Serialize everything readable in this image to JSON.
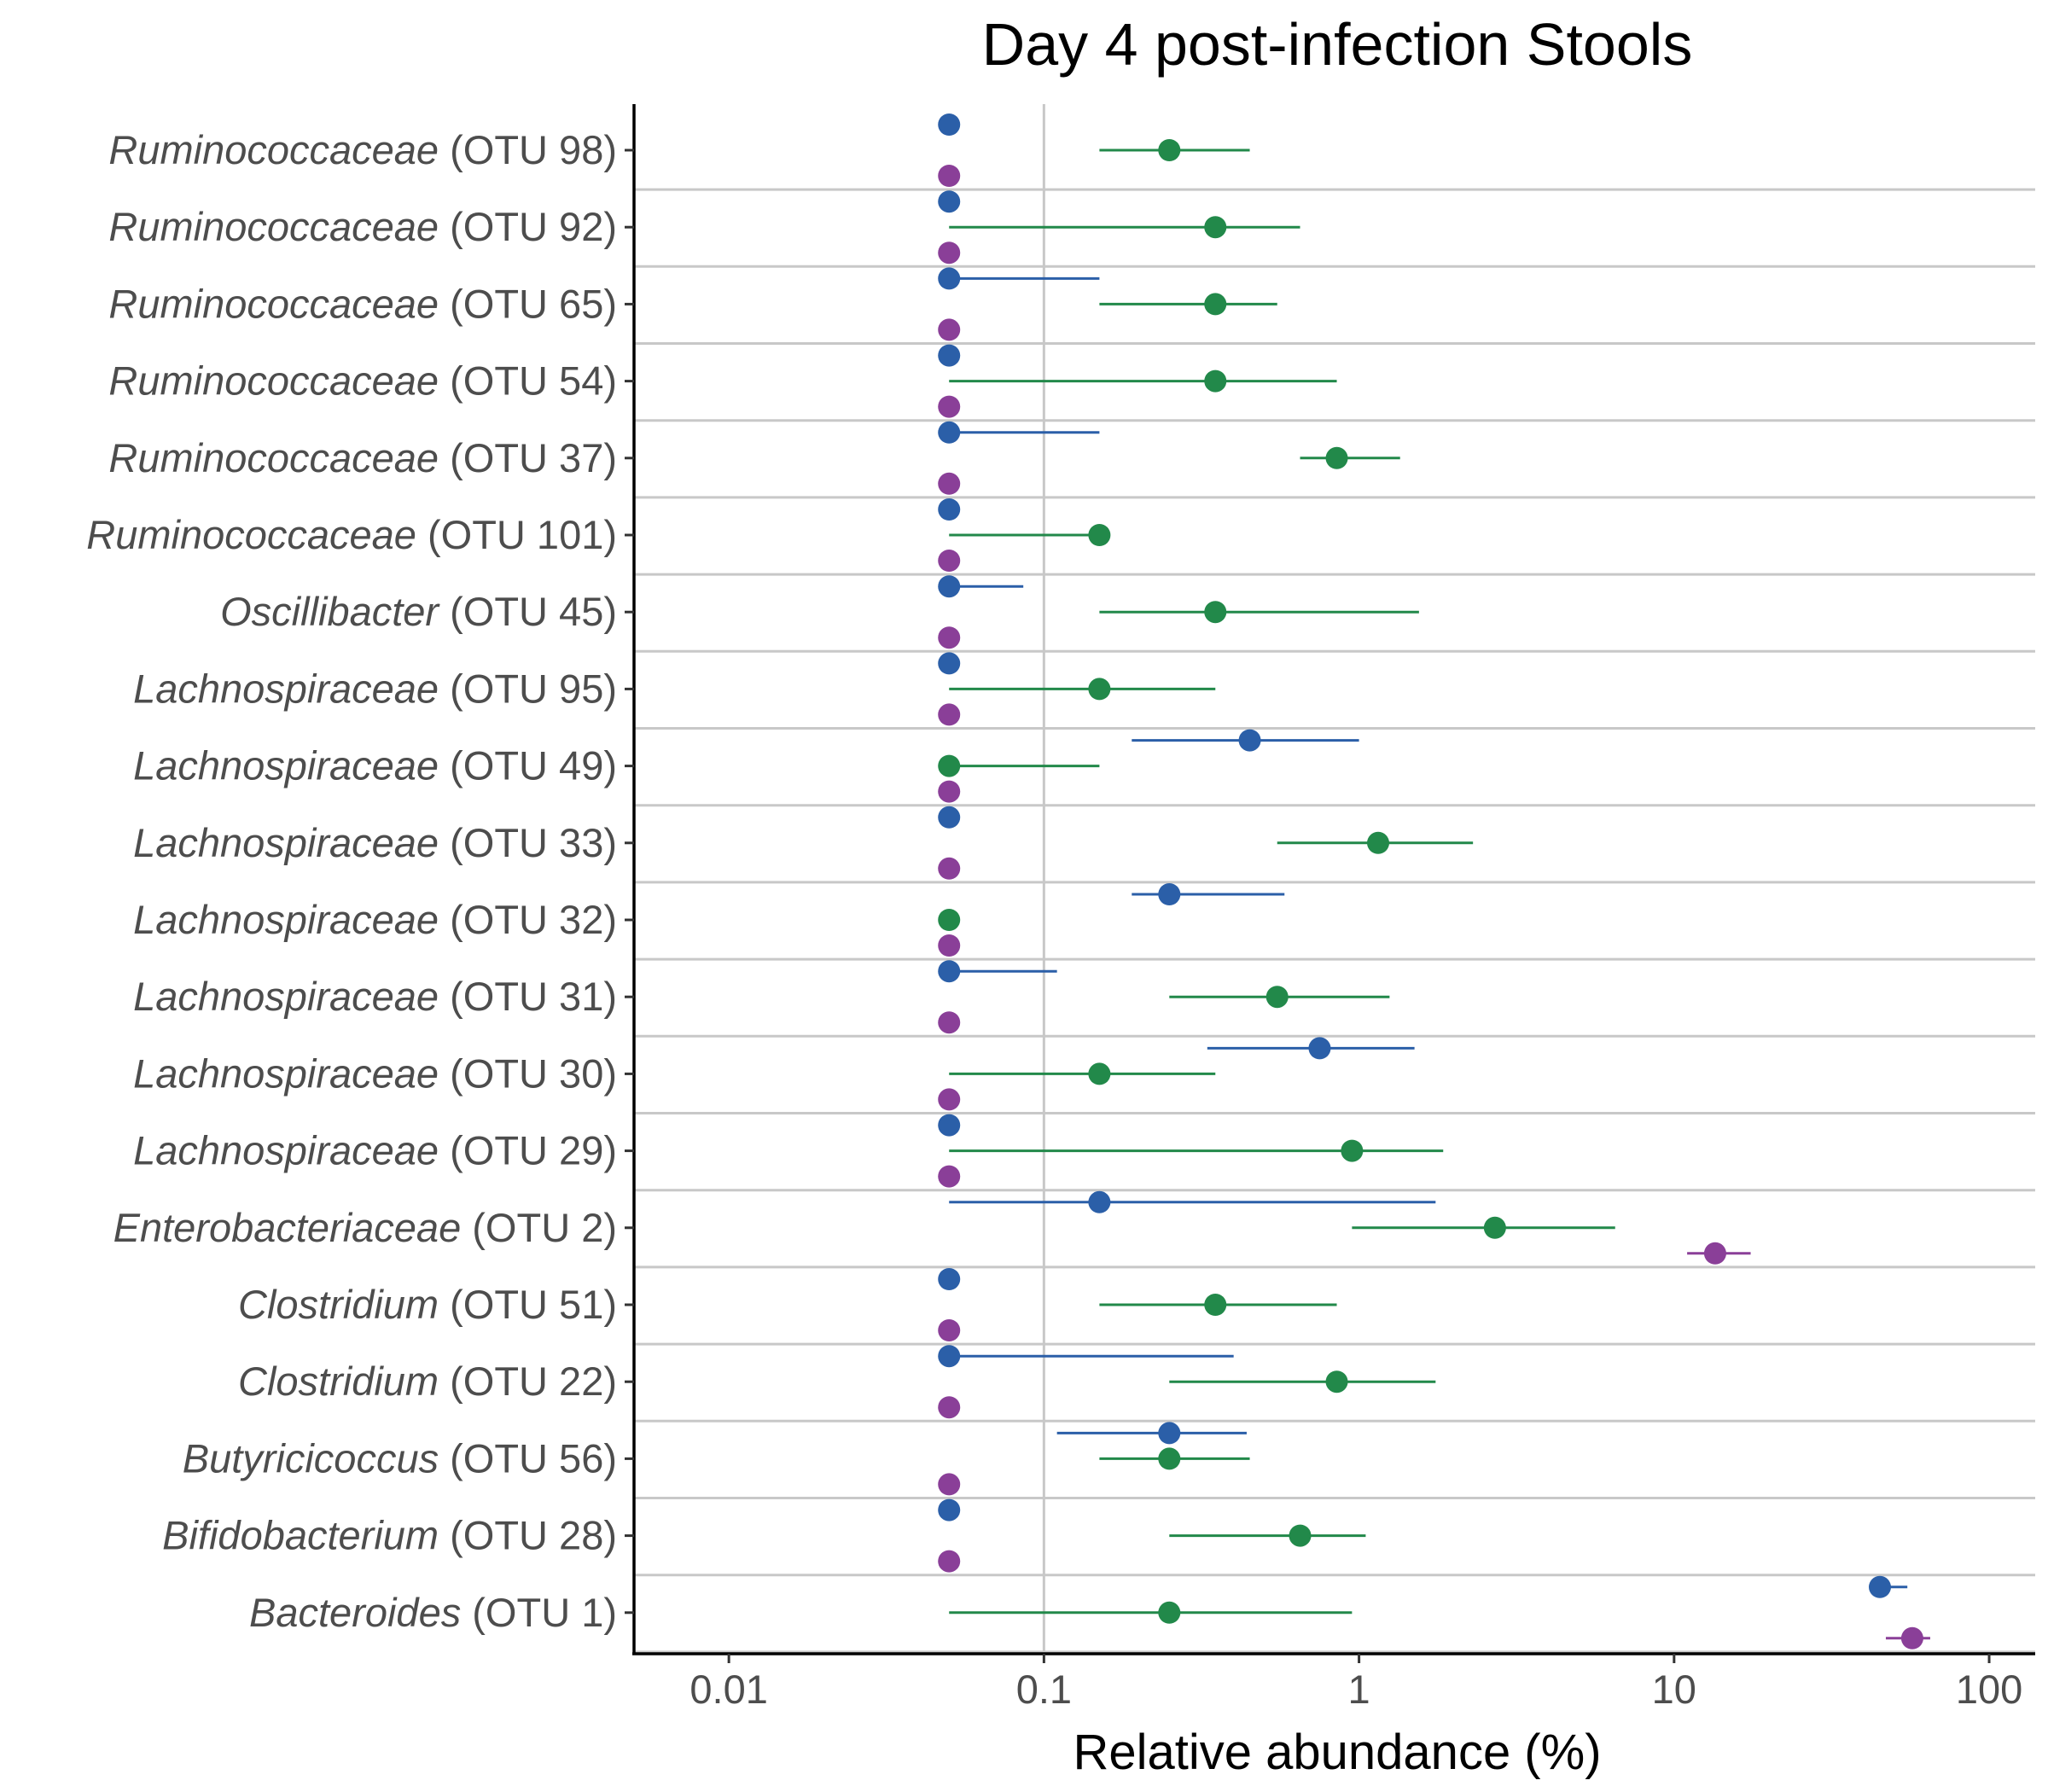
{
  "chart_data": {
    "type": "scatter",
    "title": "Day 4 post-infection Stools",
    "xlabel": "Relative abundance (%)",
    "x_scale": "log10",
    "xlim": [
      0.005,
      140
    ],
    "x_ticks": [
      0.01,
      0.1,
      1,
      10,
      100
    ],
    "x_tick_labels": [
      "0.01",
      "0.1",
      "1",
      "10",
      "100"
    ],
    "grid": "vertical line at 0.1, horizontal separators between categories",
    "colors": {
      "blue": "#2b5fa8",
      "green": "#22894a",
      "purple": "#8a3f98"
    },
    "categories": [
      {
        "name": "Ruminococcaceae",
        "otu": "(OTU 98)"
      },
      {
        "name": "Ruminococcaceae",
        "otu": "(OTU 92)"
      },
      {
        "name": "Ruminococcaceae",
        "otu": "(OTU 65)"
      },
      {
        "name": "Ruminococcaceae",
        "otu": "(OTU 54)"
      },
      {
        "name": "Ruminococcaceae",
        "otu": "(OTU 37)"
      },
      {
        "name": "Ruminococcaceae",
        "otu": "(OTU 101)"
      },
      {
        "name": "Oscillibacter",
        "otu": "(OTU 45)"
      },
      {
        "name": "Lachnospiraceae",
        "otu": "(OTU 95)"
      },
      {
        "name": "Lachnospiraceae",
        "otu": "(OTU 49)"
      },
      {
        "name": "Lachnospiraceae",
        "otu": "(OTU 33)"
      },
      {
        "name": "Lachnospiraceae",
        "otu": "(OTU 32)"
      },
      {
        "name": "Lachnospiraceae",
        "otu": "(OTU 31)"
      },
      {
        "name": "Lachnospiraceae",
        "otu": "(OTU 30)"
      },
      {
        "name": "Lachnospiraceae",
        "otu": "(OTU 29)"
      },
      {
        "name": "Enterobacteriaceae",
        "otu": "(OTU 2)"
      },
      {
        "name": "Clostridium",
        "otu": "(OTU 51)"
      },
      {
        "name": "Clostridium",
        "otu": "(OTU 22)"
      },
      {
        "name": "Butyricicoccus",
        "otu": "(OTU 56)"
      },
      {
        "name": "Bifidobacterium",
        "otu": "(OTU 28)"
      },
      {
        "name": "Bacteroides",
        "otu": "(OTU 1)"
      }
    ],
    "series": [
      {
        "color": "#2b5fa8",
        "median": [
          0.05,
          0.05,
          0.05,
          0.05,
          0.05,
          0.05,
          0.05,
          0.05,
          0.45,
          0.05,
          0.25,
          0.05,
          0.75,
          0.05,
          0.15,
          0.05,
          0.05,
          0.25,
          0.05,
          45
        ],
        "low": [
          null,
          null,
          0.05,
          null,
          0.05,
          null,
          0.05,
          null,
          0.19,
          null,
          0.19,
          0.05,
          0.33,
          null,
          0.05,
          null,
          0.05,
          0.11,
          null,
          42
        ],
        "high": [
          null,
          null,
          0.15,
          null,
          0.15,
          null,
          0.086,
          null,
          1.0,
          null,
          0.58,
          0.11,
          1.5,
          null,
          1.75,
          null,
          0.4,
          0.44,
          null,
          55
        ]
      },
      {
        "color": "#22894a",
        "median": [
          0.25,
          0.35,
          0.35,
          0.35,
          0.85,
          0.15,
          0.35,
          0.15,
          0.05,
          1.15,
          0.05,
          0.55,
          0.15,
          0.95,
          2.7,
          0.35,
          0.85,
          0.25,
          0.65,
          0.25
        ],
        "low": [
          0.15,
          0.05,
          0.15,
          0.05,
          0.65,
          0.05,
          0.15,
          0.05,
          0.05,
          0.55,
          null,
          0.25,
          0.05,
          0.05,
          0.95,
          0.15,
          0.25,
          0.15,
          0.25,
          0.05
        ],
        "high": [
          0.45,
          0.65,
          0.55,
          0.85,
          1.35,
          0.15,
          1.55,
          0.35,
          0.15,
          2.3,
          null,
          1.25,
          0.35,
          1.85,
          6.5,
          0.85,
          1.75,
          0.45,
          1.05,
          0.95
        ]
      },
      {
        "color": "#8a3f98",
        "median": [
          0.05,
          0.05,
          0.05,
          0.05,
          0.05,
          0.05,
          0.05,
          0.05,
          0.05,
          0.05,
          0.05,
          0.05,
          0.05,
          0.05,
          13.5,
          0.05,
          0.05,
          0.05,
          0.05,
          57
        ],
        "low": [
          null,
          null,
          null,
          null,
          null,
          null,
          null,
          null,
          null,
          null,
          null,
          null,
          null,
          null,
          11,
          null,
          null,
          null,
          null,
          47
        ],
        "high": [
          null,
          null,
          null,
          null,
          null,
          null,
          null,
          null,
          null,
          null,
          null,
          null,
          null,
          null,
          17.5,
          null,
          null,
          null,
          null,
          65
        ]
      }
    ]
  }
}
